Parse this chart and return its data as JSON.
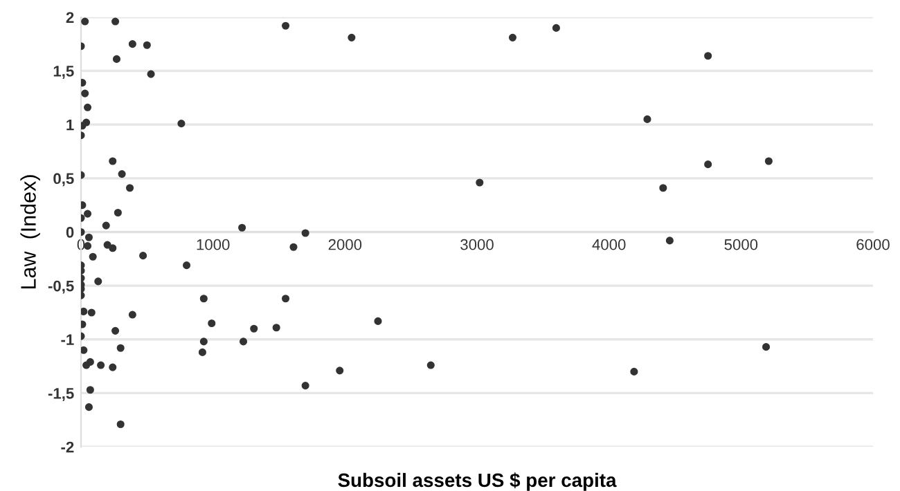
{
  "chart_data": {
    "type": "scatter",
    "xlabel": "Subsoil assets US $ per capita",
    "ylabel": "Law  (Index)",
    "x": [
      30,
      260,
      0,
      390,
      500,
      270,
      530,
      10,
      30,
      50,
      10,
      40,
      0,
      760,
      240,
      310,
      0,
      370,
      10,
      50,
      0,
      280,
      190,
      0,
      60,
      1220,
      90,
      470,
      800,
      0,
      0,
      0,
      0,
      0,
      0,
      130,
      930,
      1550,
      20,
      80,
      390,
      10,
      990,
      260,
      1310,
      1480,
      0,
      930,
      1230,
      300,
      20,
      920,
      40,
      70,
      150,
      240,
      70,
      60,
      300,
      1700,
      50,
      200,
      240,
      1610,
      1700,
      1550,
      2050,
      3270,
      3600,
      3020,
      2250,
      1960,
      2650,
      4750,
      4290,
      4750,
      5210,
      4410,
      4460,
      5190,
      4190
    ],
    "values": [
      1.96,
      1.96,
      1.73,
      1.75,
      1.74,
      1.61,
      1.47,
      1.39,
      1.29,
      1.16,
      0.99,
      1.02,
      0.9,
      1.01,
      0.66,
      0.54,
      0.53,
      0.41,
      0.25,
      0.17,
      0.13,
      0.18,
      0.06,
      0,
      -0.05,
      0.04,
      -0.23,
      -0.22,
      -0.31,
      -0.31,
      -0.36,
      -0.43,
      -0.49,
      -0.53,
      -0.59,
      -0.46,
      -0.62,
      -0.62,
      -0.74,
      -0.75,
      -0.77,
      -0.86,
      -0.85,
      -0.92,
      -0.9,
      -0.89,
      -0.97,
      -1.02,
      -1.02,
      -1.08,
      -1.1,
      -1.12,
      -1.24,
      -1.21,
      -1.24,
      -1.26,
      -1.47,
      -1.63,
      -1.79,
      -1.43,
      -0.13,
      -0.12,
      -0.15,
      -0.14,
      -0.01,
      1.92,
      1.81,
      1.81,
      1.9,
      0.46,
      -0.83,
      -1.29,
      -1.24,
      1.64,
      1.05,
      0.63,
      0.66,
      0.41,
      -0.08,
      -1.07,
      -1.3
    ],
    "color": "#333333",
    "marker": "circle",
    "xlim": [
      0,
      6000
    ],
    "xticks": [
      0,
      1000,
      2000,
      3000,
      4000,
      5000,
      6000
    ],
    "ylim": [
      -2,
      2
    ],
    "yticks": [
      {
        "value": -2,
        "label": "-2"
      },
      {
        "value": -1.5,
        "label": "-1,5"
      },
      {
        "value": -1,
        "label": "-1"
      },
      {
        "value": -0.5,
        "label": "-0,5"
      },
      0,
      {
        "value": 0.5,
        "label": "0,5"
      },
      1,
      {
        "value": 1.5,
        "label": "1,5"
      },
      2
    ],
    "grid": "y"
  }
}
